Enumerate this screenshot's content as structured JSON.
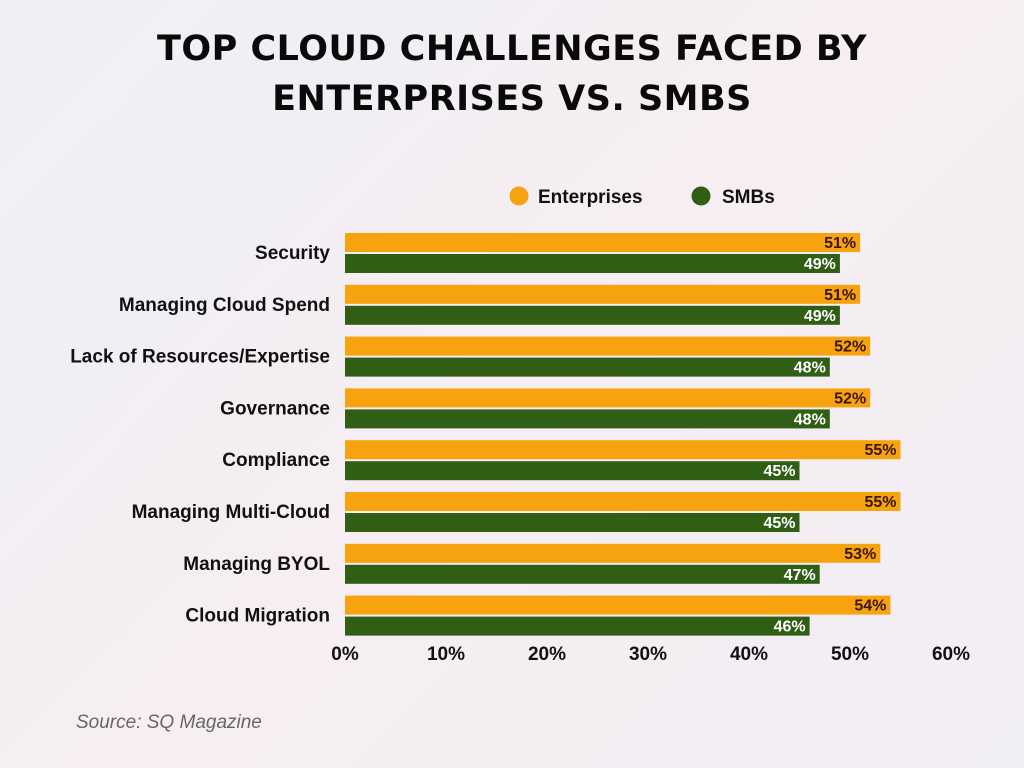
{
  "chart_data": {
    "type": "bar",
    "orientation": "horizontal",
    "title": "TOP CLOUD CHALLENGES FACED BY ENTERPRISES VS. SMBS",
    "categories": [
      "Security",
      "Managing Cloud Spend",
      "Lack of Resources/Expertise",
      "Governance",
      "Compliance",
      "Managing Multi-Cloud",
      "Managing BYOL",
      "Cloud Migration"
    ],
    "series": [
      {
        "name": "Enterprises",
        "color": "#F6A30F",
        "label_color": "#3a1608",
        "values": [
          51,
          51,
          52,
          52,
          55,
          55,
          53,
          54
        ]
      },
      {
        "name": "SMBs",
        "color": "#2F5E14",
        "label_color": "#ffffff",
        "values": [
          49,
          49,
          48,
          48,
          45,
          45,
          47,
          46
        ]
      }
    ],
    "xlim": [
      0,
      60
    ],
    "xticks": [
      "0%",
      "10%",
      "20%",
      "30%",
      "40%",
      "50%",
      "60%"
    ],
    "value_suffix": "%",
    "legend_position": "top",
    "grid": false
  },
  "source": "Source: SQ Magazine"
}
